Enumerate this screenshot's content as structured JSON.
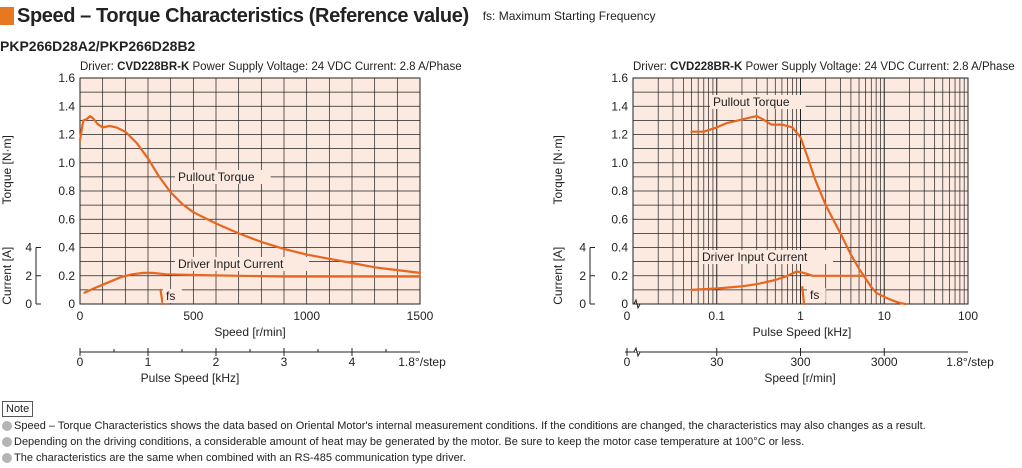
{
  "header": {
    "title": "Speed – Torque Characteristics (Reference value)",
    "subtitle": "fs: Maximum Starting Frequency"
  },
  "model": "PKP266D28A2/PKP266D28B2",
  "notes": {
    "label": "Note",
    "items": [
      "Speed – Torque Characteristics shows the data based on Oriental Motor's internal measurement conditions. If the conditions are changed, the characteristics may also changes as a result.",
      "Depending on the driving conditions, a considerable amount of heat may be generated by the motor. Be sure to keep the motor case temperature at 100°C or less.",
      "The characteristics are the same when combined with an RS-485 communication type driver."
    ]
  },
  "colors": {
    "accent": "#e87722",
    "curve": "#e8661e",
    "plot_bg": "#fce9df",
    "grid": "#222222"
  },
  "chart_data": [
    {
      "type": "line",
      "driver_prefix": "Driver: ",
      "driver": "CVD228BR-K",
      "conditions": "Power Supply Voltage: 24 VDC  Current: 2.8 A/Phase",
      "xlabel": "Speed [r/min]",
      "x2label": "Pulse Speed [kHz]",
      "x2_step": "1.8°/step",
      "ylabel": "Torque [N·m]",
      "y2label": "Current [A]",
      "xscale": "linear",
      "xlim": [
        0,
        1500
      ],
      "ylim": [
        0,
        1.6
      ],
      "x_ticks": [
        "0",
        "500",
        "1000",
        "1500"
      ],
      "x2_ticks": [
        "0",
        "1",
        "2",
        "3",
        "4"
      ],
      "y_ticks": [
        "0",
        "0.2",
        "0.4",
        "0.6",
        "0.8",
        "1.0",
        "1.2",
        "1.4",
        "1.6"
      ],
      "y2_ticks": [
        "0",
        "2",
        "4"
      ],
      "grid": true,
      "series": [
        {
          "name": "Pullout Torque",
          "x": [
            0,
            8,
            15,
            30,
            45,
            60,
            80,
            100,
            130,
            160,
            200,
            250,
            300,
            350,
            400,
            450,
            500,
            600,
            700,
            800,
            900,
            1000,
            1100,
            1200,
            1300,
            1400,
            1500
          ],
          "y": [
            1.16,
            1.24,
            1.3,
            1.31,
            1.33,
            1.31,
            1.27,
            1.25,
            1.26,
            1.25,
            1.22,
            1.14,
            1.03,
            0.9,
            0.79,
            0.71,
            0.65,
            0.57,
            0.5,
            0.44,
            0.39,
            0.35,
            0.32,
            0.29,
            0.26,
            0.24,
            0.22
          ]
        },
        {
          "name": "Driver Input Current",
          "x": [
            20,
            60,
            120,
            180,
            230,
            280,
            320,
            380,
            500,
            700,
            900,
            1100,
            1300,
            1500
          ],
          "y": [
            0.08,
            0.11,
            0.15,
            0.19,
            0.21,
            0.22,
            0.22,
            0.21,
            0.205,
            0.2,
            0.195,
            0.195,
            0.195,
            0.195
          ]
        },
        {
          "name": "fs",
          "x": [
            355,
            365
          ],
          "y": [
            0.1,
            0.0
          ]
        }
      ]
    },
    {
      "type": "line",
      "driver_prefix": "Driver: ",
      "driver": "CVD228BR-K",
      "conditions": "Power Supply Voltage: 24 VDC  Current: 2.8 A/Phase",
      "xlabel": "Pulse Speed [kHz]",
      "x2label": "Speed [r/min]",
      "x2_step": "1.8°/step",
      "ylabel": "Torque [N·m]",
      "y2label": "Current [A]",
      "xscale": "log",
      "xlim": [
        0.01,
        100
      ],
      "ylim": [
        0,
        1.6
      ],
      "x_ticks": [
        "0.1",
        "1",
        "10",
        "100"
      ],
      "x_tick_values": [
        0.1,
        1,
        10,
        100
      ],
      "x0_label": "0",
      "x2_ticks": [
        "30",
        "300",
        "3000"
      ],
      "x2_tick_values": [
        0.1,
        1,
        10
      ],
      "y_ticks": [
        "0",
        "0.2",
        "0.4",
        "0.6",
        "0.8",
        "1.0",
        "1.2",
        "1.4",
        "1.6"
      ],
      "y2_ticks": [
        "0",
        "2",
        "4"
      ],
      "grid": true,
      "series": [
        {
          "name": "Pullout Torque",
          "x": [
            0.05,
            0.07,
            0.1,
            0.13,
            0.18,
            0.25,
            0.3,
            0.35,
            0.45,
            0.6,
            0.8,
            1.0,
            1.2,
            1.5,
            2,
            2.5,
            3,
            4,
            5,
            6,
            7,
            8,
            10,
            12,
            14,
            16,
            18
          ],
          "y": [
            1.22,
            1.22,
            1.25,
            1.28,
            1.3,
            1.32,
            1.33,
            1.31,
            1.27,
            1.27,
            1.25,
            1.18,
            1.05,
            0.88,
            0.7,
            0.59,
            0.5,
            0.35,
            0.25,
            0.18,
            0.12,
            0.08,
            0.05,
            0.03,
            0.015,
            0.005,
            0.0
          ]
        },
        {
          "name": "Driver Input Current",
          "x": [
            0.05,
            0.1,
            0.2,
            0.3,
            0.5,
            0.7,
            0.9,
            1.1,
            1.4,
            2,
            3,
            5,
            6
          ],
          "y": [
            0.1,
            0.11,
            0.125,
            0.14,
            0.17,
            0.2,
            0.23,
            0.22,
            0.2,
            0.2,
            0.2,
            0.2,
            0.2
          ]
        },
        {
          "name": "fs",
          "x": [
            1.05,
            1.1
          ],
          "y": [
            0.12,
            0.0
          ]
        }
      ]
    }
  ]
}
